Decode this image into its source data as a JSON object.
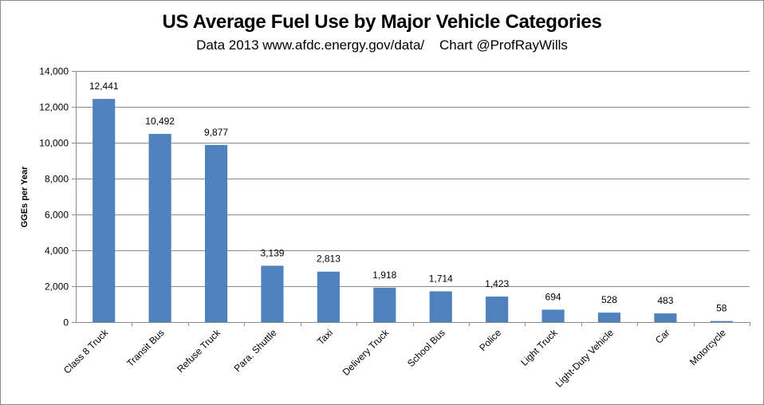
{
  "chart_data": {
    "type": "bar",
    "title": "US Average Fuel Use by Major Vehicle Categories",
    "subtitle": "Data 2013 www.afdc.energy.gov/data/    Chart @ProfRayWills",
    "xlabel": "",
    "ylabel": "GGEs per Year",
    "ylim": [
      0,
      14000
    ],
    "ytick_step": 2000,
    "grid": true,
    "bar_color": "#4f81bd",
    "categories": [
      "Class 8 Truck",
      "Transit Bus",
      "Refuse Truck",
      "Para. Shuttle",
      "Taxi",
      "Delivery Truck",
      "School Bus",
      "Police",
      "Light Truck",
      "Light-Duty Vehicle",
      "Car",
      "Motorcycle"
    ],
    "values": [
      12441,
      10492,
      9877,
      3139,
      2813,
      1918,
      1714,
      1423,
      694,
      528,
      483,
      58
    ],
    "value_labels": [
      "12,441",
      "10,492",
      "9,877",
      "3,139",
      "2,813",
      "1,918",
      "1,714",
      "1,423",
      "694",
      "528",
      "483",
      "58"
    ],
    "ytick_labels": [
      "0",
      "2,000",
      "4,000",
      "6,000",
      "8,000",
      "10,000",
      "12,000",
      "14,000"
    ]
  }
}
